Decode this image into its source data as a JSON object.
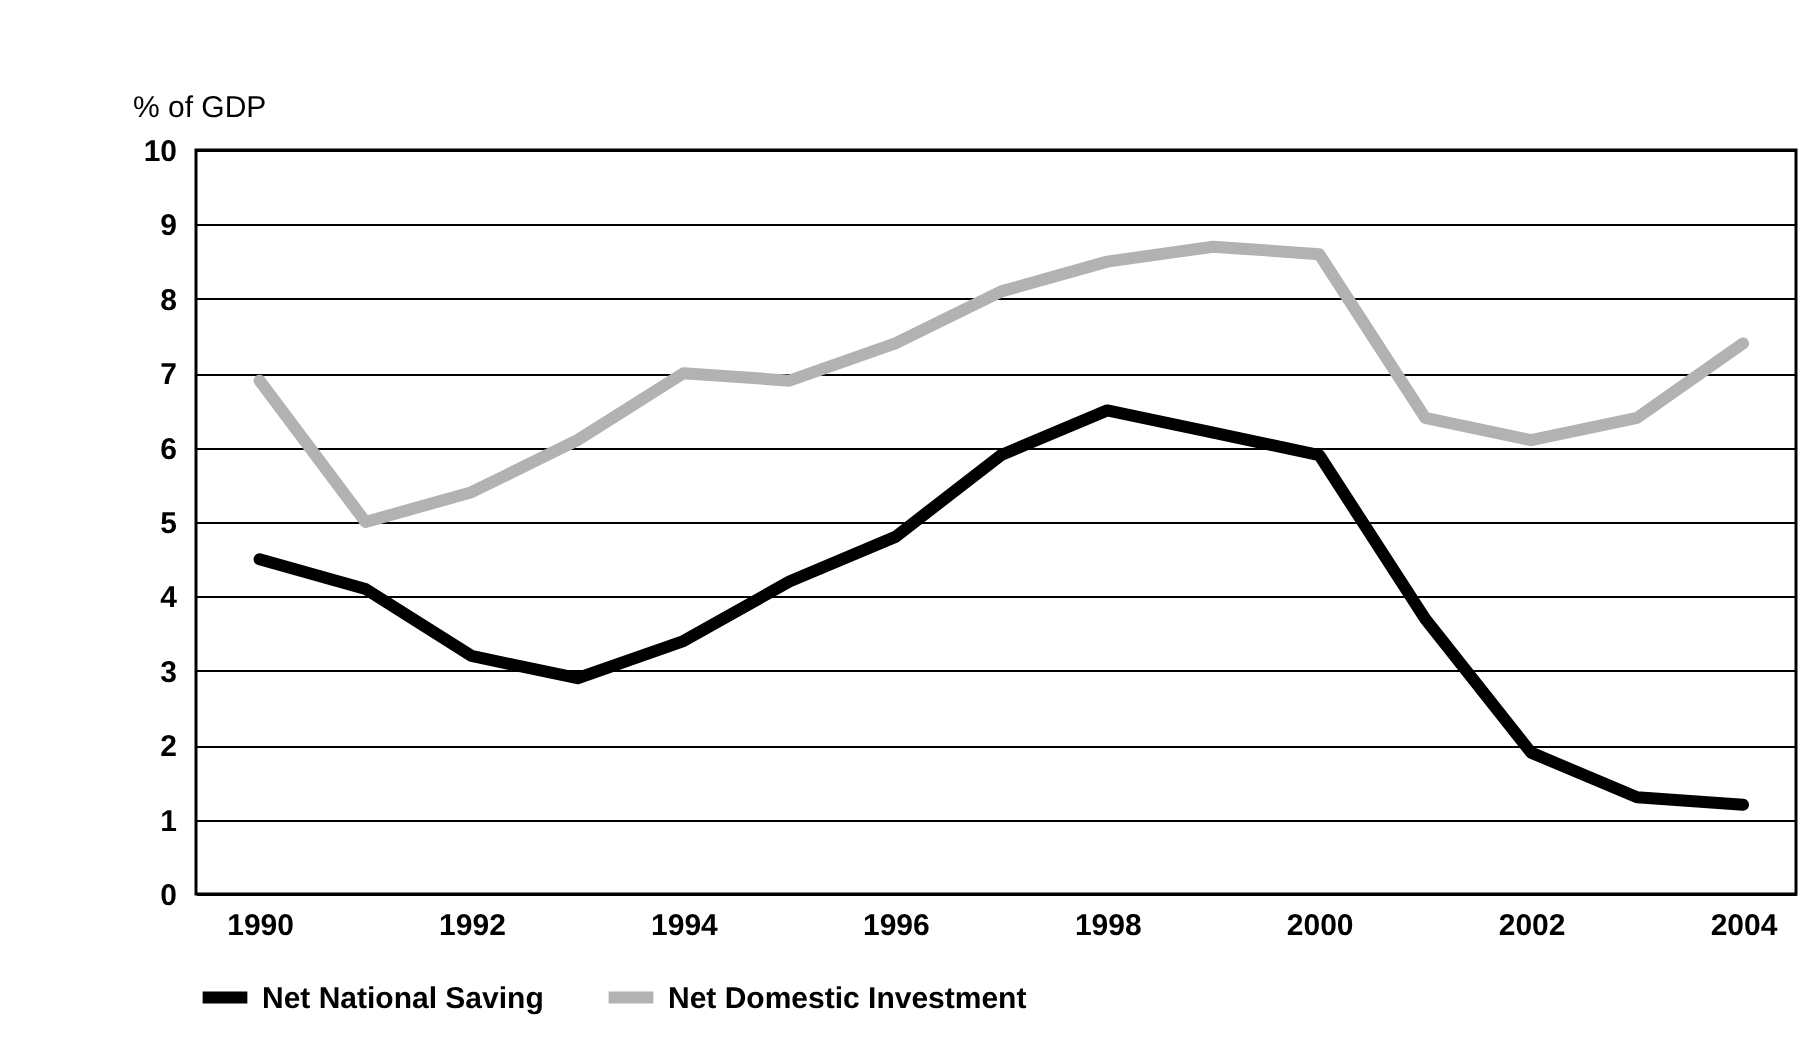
{
  "chart_data": {
    "type": "line",
    "ylabel": "% of GDP",
    "x": [
      1990,
      1991,
      1992,
      1993,
      1994,
      1995,
      1996,
      1997,
      1998,
      1999,
      2000,
      2001,
      2002,
      2003,
      2004
    ],
    "series": [
      {
        "name": "Net National Saving",
        "color": "#000000",
        "values": [
          4.5,
          4.1,
          3.2,
          2.9,
          3.4,
          4.2,
          4.8,
          5.9,
          6.5,
          6.2,
          5.9,
          3.7,
          1.9,
          1.3,
          1.2
        ]
      },
      {
        "name": "Net Domestic Investment",
        "color": "#b2b2b2",
        "values": [
          6.9,
          5.0,
          5.4,
          6.1,
          7.0,
          6.9,
          7.4,
          8.1,
          8.5,
          8.7,
          8.6,
          6.4,
          6.1,
          6.4,
          7.4
        ]
      }
    ],
    "xlim": [
      1989.4,
      2004.5
    ],
    "xticks": [
      1990,
      1992,
      1994,
      1996,
      1998,
      2000,
      2002,
      2004
    ],
    "ylim": [
      0,
      10
    ],
    "yticks": [
      0,
      1,
      2,
      3,
      4,
      5,
      6,
      7,
      8,
      9,
      10
    ],
    "grid": "y",
    "legend": "bottom",
    "marker": "none",
    "line_style": "solid"
  }
}
